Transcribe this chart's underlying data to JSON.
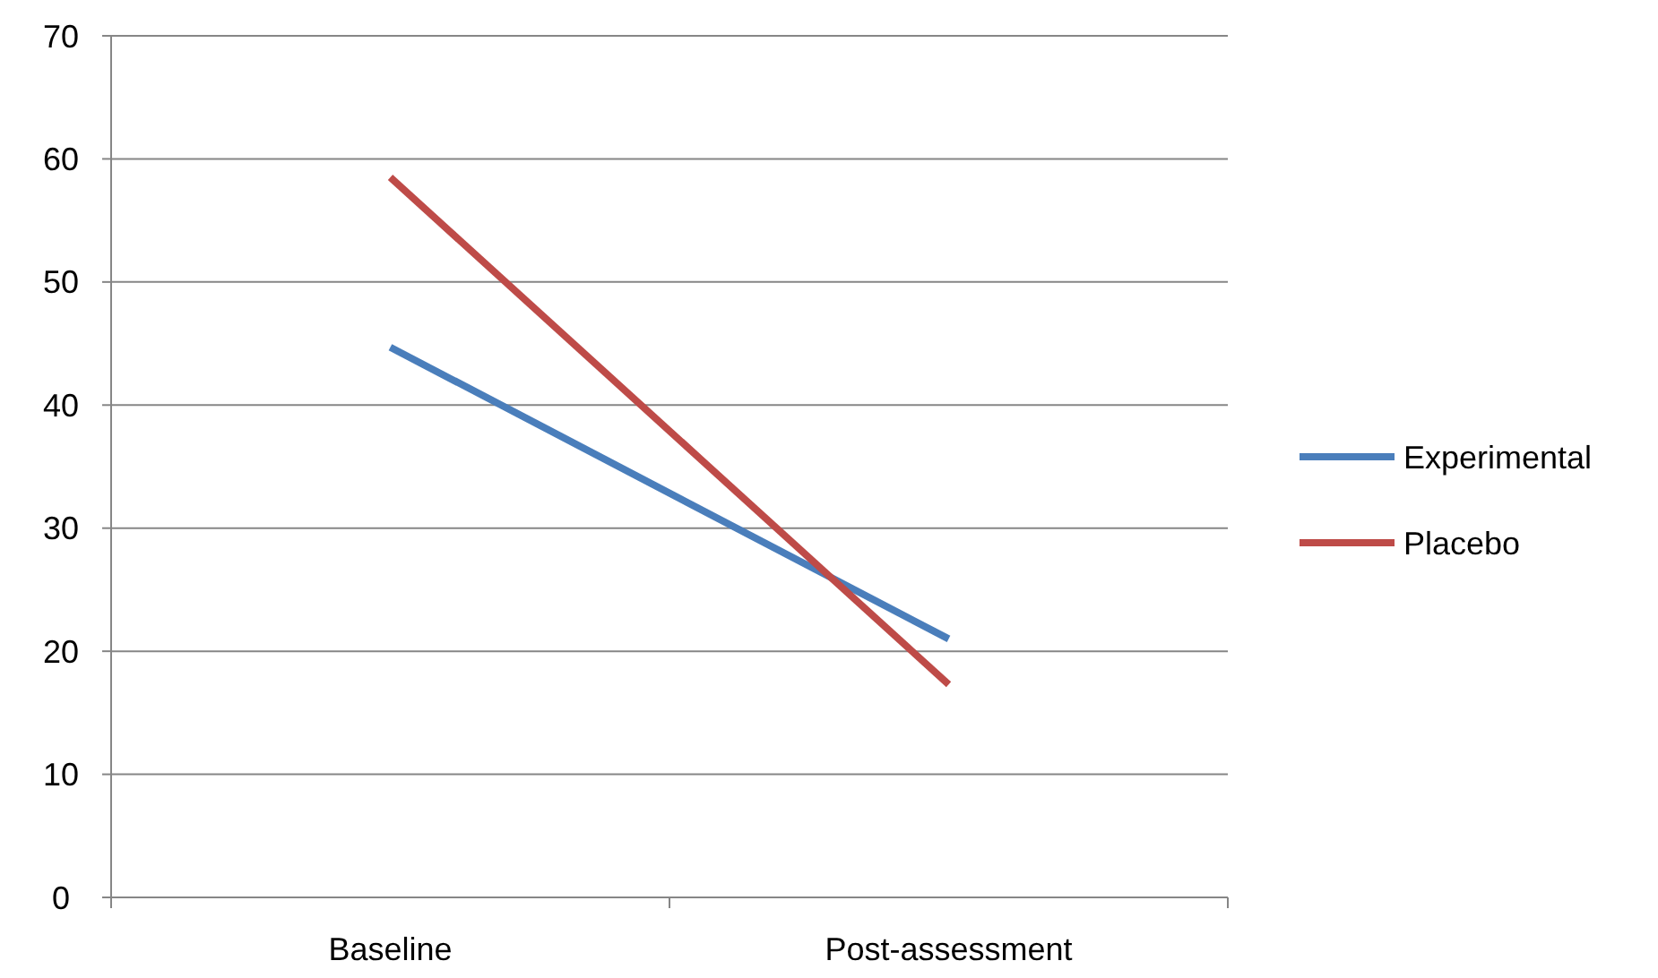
{
  "chart_data": {
    "type": "line",
    "categories": [
      "Baseline",
      "Post-assessment"
    ],
    "series": [
      {
        "name": "Experimental",
        "color": "#4a7ebb",
        "values": [
          44.7,
          21
        ]
      },
      {
        "name": "Placebo",
        "color": "#be4b48",
        "values": [
          58.5,
          17.3
        ]
      }
    ],
    "ylim": [
      0,
      70
    ],
    "yticks": [
      0,
      10,
      20,
      30,
      40,
      50,
      60,
      70
    ],
    "grid": "y",
    "legend": "right",
    "marker": "none"
  }
}
